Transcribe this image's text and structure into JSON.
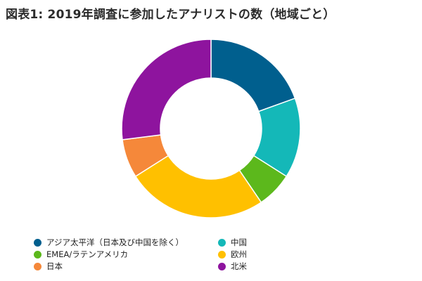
{
  "title": "図表1: 2019年調査に参加したアナリストの数（地域ごと）",
  "chart_data": {
    "type": "pie",
    "subtype": "donut",
    "title": "図表1: 2019年調査に参加したアナリストの数（地域ごと）",
    "series": [
      {
        "name": "アジア太平洋（日本及び中国を除く）",
        "value": 19.5,
        "color": "#005F8E"
      },
      {
        "name": "中国",
        "value": 14.5,
        "color": "#14B8B8"
      },
      {
        "name": "EMEA/ラテンアメリカ",
        "value": 6.5,
        "color": "#5CB81C"
      },
      {
        "name": "欧州",
        "value": 25.5,
        "color": "#FFC000"
      },
      {
        "name": "日本",
        "value": 7.0,
        "color": "#F5883A"
      },
      {
        "name": "北米",
        "value": 27.0,
        "color": "#8E149E"
      }
    ],
    "legend_position": "bottom-left"
  },
  "legend": {
    "order": [
      0,
      1,
      2,
      3,
      4,
      5
    ]
  }
}
